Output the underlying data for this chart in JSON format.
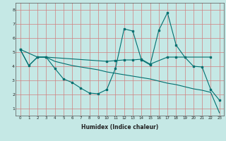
{
  "xlabel": "Humidex (Indice chaleur)",
  "ylabel": "",
  "bg_color": "#c5e8e5",
  "grid_color": "#d08080",
  "line_color": "#007070",
  "marker_color": "#007070",
  "xlim": [
    -0.5,
    23.5
  ],
  "ylim": [
    0.5,
    8.5
  ],
  "xticks": [
    0,
    1,
    2,
    3,
    4,
    5,
    6,
    7,
    8,
    9,
    10,
    11,
    12,
    13,
    14,
    15,
    16,
    17,
    18,
    19,
    20,
    21,
    22,
    23
  ],
  "yticks": [
    1,
    2,
    3,
    4,
    5,
    6,
    7,
    8
  ],
  "line1_x": [
    0,
    1,
    2,
    3,
    4,
    5,
    6,
    7,
    8,
    9,
    10,
    11,
    12,
    13,
    14,
    15,
    16,
    17,
    18,
    19,
    20,
    21,
    22,
    23
  ],
  "line1_y": [
    5.2,
    4.05,
    4.65,
    4.65,
    3.85,
    3.1,
    2.85,
    2.45,
    2.1,
    2.05,
    2.35,
    3.85,
    6.65,
    6.5,
    4.45,
    4.1,
    6.55,
    7.8,
    5.5,
    4.65,
    4.0,
    3.95,
    2.35,
    1.6
  ],
  "line2_x": [
    0,
    2,
    3,
    10,
    11,
    12,
    13,
    14,
    15,
    17,
    18,
    22
  ],
  "line2_y": [
    5.2,
    4.65,
    4.65,
    4.35,
    4.4,
    4.45,
    4.45,
    4.5,
    4.15,
    4.65,
    4.65,
    4.65
  ],
  "line3_x": [
    0,
    1,
    2,
    3,
    4,
    5,
    6,
    7,
    8,
    9,
    10,
    11,
    12,
    13,
    14,
    15,
    16,
    17,
    18,
    19,
    20,
    21,
    22,
    23
  ],
  "line3_y": [
    5.2,
    4.05,
    4.65,
    4.65,
    4.35,
    4.2,
    4.05,
    3.95,
    3.85,
    3.75,
    3.6,
    3.5,
    3.4,
    3.3,
    3.2,
    3.1,
    2.95,
    2.8,
    2.7,
    2.55,
    2.4,
    2.3,
    2.15,
    0.7
  ]
}
